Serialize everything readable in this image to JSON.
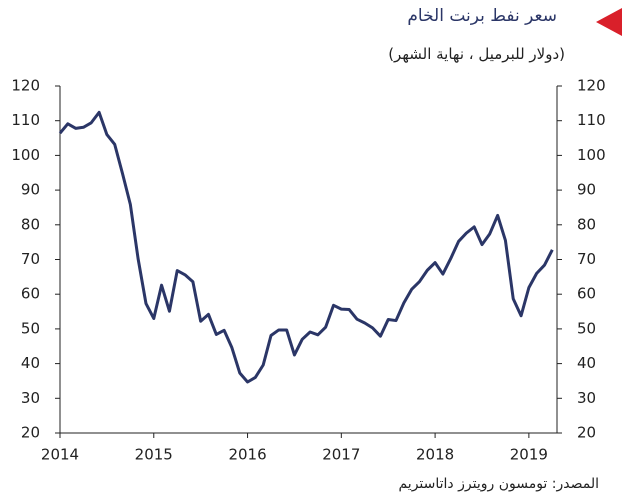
{
  "chart_data": {
    "type": "line",
    "title": "سعر نفط برنت الخام",
    "subtitle": "(دولار للبرميل ، نهاية الشهر)",
    "source": "المصدر: تومسون رويترز داتاستريم",
    "x": [
      2014,
      2014.083,
      2014.167,
      2014.25,
      2014.333,
      2014.417,
      2014.5,
      2014.583,
      2014.667,
      2014.75,
      2014.833,
      2014.917,
      2015,
      2015.083,
      2015.167,
      2015.25,
      2015.333,
      2015.417,
      2015.5,
      2015.583,
      2015.667,
      2015.75,
      2015.833,
      2015.917,
      2016,
      2016.083,
      2016.167,
      2016.25,
      2016.333,
      2016.417,
      2016.5,
      2016.583,
      2016.667,
      2016.75,
      2016.833,
      2016.917,
      2017,
      2017.083,
      2017.167,
      2017.25,
      2017.333,
      2017.417,
      2017.5,
      2017.583,
      2017.667,
      2017.75,
      2017.833,
      2017.917,
      2018,
      2018.083,
      2018.167,
      2018.25,
      2018.333,
      2018.417,
      2018.5,
      2018.583,
      2018.667,
      2018.75,
      2018.833,
      2018.917,
      2019,
      2019.083,
      2019.167,
      2019.25
    ],
    "series": [
      {
        "color": "#2b3667",
        "values": [
          106.4,
          109.1,
          107.8,
          108.1,
          109.4,
          112.4,
          106,
          103.2,
          94.7,
          85.9,
          70.2,
          57.3,
          53,
          62.6,
          55.1,
          66.8,
          65.6,
          63.6,
          52.2,
          54.2,
          48.4,
          49.6,
          44.6,
          37.3,
          34.7,
          36,
          39.6,
          48.1,
          49.7,
          49.7,
          42.5,
          47,
          49.1,
          48.3,
          50.5,
          56.8,
          55.7,
          55.6,
          52.8,
          51.7,
          50.3,
          47.9,
          52.7,
          52.4,
          57.5,
          61.4,
          63.6,
          66.9,
          69.1,
          65.8,
          70.3,
          75.2,
          77.6,
          79.4,
          74.3,
          77.4,
          82.7,
          75.5,
          58.7,
          53.8,
          61.9,
          66,
          68.4,
          72.8
        ]
      }
    ],
    "xlim": [
      2014,
      2019.3
    ],
    "xticks": [
      2014,
      2015,
      2016,
      2017,
      2018,
      2019
    ],
    "ylim": [
      20,
      120
    ],
    "yticks": [
      20,
      30,
      40,
      50,
      60,
      70,
      80,
      90,
      100,
      110,
      120
    ]
  }
}
